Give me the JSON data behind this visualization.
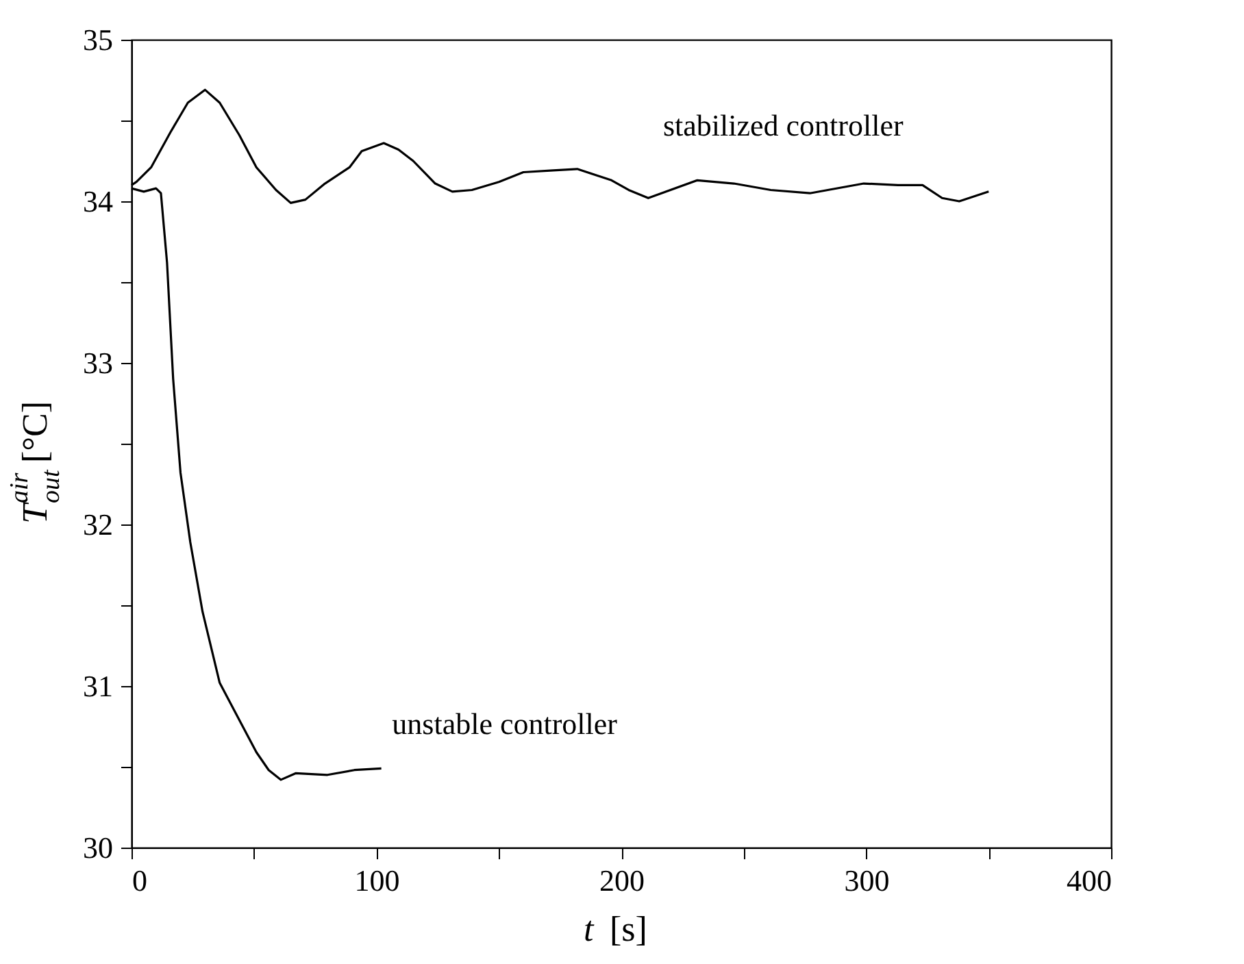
{
  "chart_data": {
    "type": "line",
    "xlabel": "t [s]",
    "ylabel": "T$_{out}$$^{air}$ [°C]",
    "xlim": [
      0,
      400
    ],
    "xticks": [
      0,
      {
        "value": 50,
        "label": null
      },
      100,
      {
        "value": 150,
        "label": null
      },
      200,
      {
        "value": 250,
        "label": null
      },
      300,
      {
        "value": 350,
        "label": null
      },
      400
    ],
    "ylim": [
      30,
      35
    ],
    "yticks": [
      30,
      {
        "value": 30.5,
        "label": null
      },
      31,
      {
        "value": 31.5,
        "label": null
      },
      32,
      {
        "value": 32.5,
        "label": null
      },
      33,
      {
        "value": 33.5,
        "label": null
      },
      34,
      {
        "value": 34.5,
        "label": null
      },
      35
    ],
    "grid": false,
    "marker": "none",
    "line_style": "solid",
    "series": [
      {
        "name": "stabilized controller",
        "color": "#000000",
        "x": [
          0,
          2,
          8,
          16,
          23,
          30,
          36,
          44,
          51,
          59,
          65,
          71,
          79,
          89,
          94,
          103,
          109,
          115,
          124,
          131,
          139,
          150,
          160,
          171,
          182,
          196,
          203,
          211,
          231,
          246,
          261,
          277,
          299,
          313,
          323,
          331,
          338,
          350
        ],
        "values": [
          34.1,
          34.12,
          34.21,
          34.43,
          34.61,
          34.69,
          34.61,
          34.41,
          34.21,
          34.07,
          33.99,
          34.01,
          34.11,
          34.21,
          34.31,
          34.36,
          34.32,
          34.25,
          34.11,
          34.06,
          34.07,
          34.12,
          34.18,
          34.19,
          34.2,
          34.13,
          34.07,
          34.02,
          34.13,
          34.11,
          34.07,
          34.05,
          34.11,
          34.1,
          34.1,
          34.02,
          34.0,
          34.06
        ]
      },
      {
        "name": "unstable controller",
        "color": "#000000",
        "x": [
          0,
          5,
          10,
          12,
          14.5,
          17,
          20,
          24,
          29,
          36,
          44,
          51,
          56,
          61,
          67,
          80,
          91,
          102
        ],
        "values": [
          34.08,
          34.06,
          34.08,
          34.05,
          33.62,
          32.9,
          32.32,
          31.89,
          31.46,
          31.02,
          30.79,
          30.59,
          30.48,
          30.42,
          30.46,
          30.45,
          30.48,
          30.49
        ]
      }
    ]
  }
}
